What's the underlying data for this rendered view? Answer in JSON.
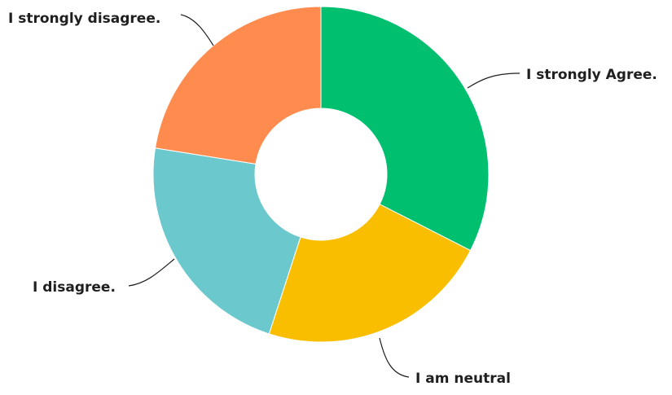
{
  "chart_data": {
    "type": "pie",
    "donut": true,
    "title": "",
    "legend": "none",
    "start": "top",
    "direction": "clockwise",
    "slices": [
      {
        "label": "I strongly Agree.",
        "value": 32.5,
        "color": "#00BF6F"
      },
      {
        "label": "I am neutral",
        "value": 22.5,
        "color": "#F9BE00"
      },
      {
        "label": "I disagree.",
        "value": 22.5,
        "color": "#6BC8CD"
      },
      {
        "label": "I strongly disagree.",
        "value": 22.5,
        "color": "#FF8B4F"
      }
    ]
  }
}
